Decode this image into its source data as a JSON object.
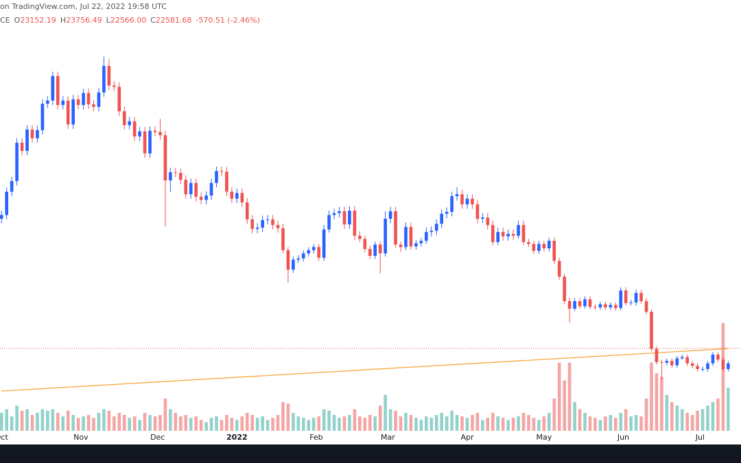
{
  "chart_data": {
    "type": "candlestick",
    "title": "on TradingView.com, Jul 22, 2022 19:58 UTC",
    "symbol": "CE",
    "legend": {
      "labels": [
        "O",
        "H",
        "L",
        "C"
      ],
      "values": [
        23152.19,
        23756.49,
        22566,
        22581.68
      ],
      "value_labels": [
        "23152.19",
        "23756.49",
        "22566.00",
        "22581.68"
      ],
      "change": "-570.51 (-2.46%)"
    },
    "open": [
      43200,
      43800,
      47500,
      49200,
      55300,
      54000,
      57400,
      56000,
      57300,
      61500,
      62000,
      65900,
      61300,
      62000,
      58200,
      62200,
      61300,
      63200,
      61400,
      61000,
      63300,
      67500,
      64400,
      64200,
      60300,
      58100,
      58700,
      56300,
      57100,
      53600,
      57200,
      57000,
      56500,
      49300,
      50600,
      50500,
      49400,
      47100,
      48900,
      46700,
      46200,
      46900,
      48900,
      50800,
      50700,
      47500,
      46400,
      47300,
      45800,
      43100,
      41600,
      41800,
      43000,
      43100,
      42200,
      41700,
      38200,
      35100,
      36700,
      36900,
      37700,
      38200,
      38700,
      37000,
      41500,
      43800,
      44100,
      44400,
      42300,
      44500,
      40500,
      40000,
      38400,
      37300,
      39100,
      37700,
      43200,
      44400,
      39100,
      38700,
      41900,
      38800,
      39300,
      39700,
      41100,
      41300,
      42400,
      44000,
      44300,
      46800,
      47100,
      45500,
      46400,
      45500,
      43200,
      43400,
      42200,
      39500,
      41100,
      40400,
      40800,
      40500,
      42200,
      39500,
      39200,
      38100,
      39200,
      38500,
      39700,
      36500,
      34000,
      30100,
      28900,
      30100,
      29300,
      30400,
      29200,
      29100,
      29600,
      29100,
      29500,
      29000,
      31800,
      29800,
      29900,
      31400,
      30100,
      28400,
      22500,
      20400,
      20300,
      20600,
      19900,
      21000,
      21200,
      20200,
      19800,
      19300,
      19300,
      20200,
      21600,
      20800,
      19300
    ],
    "high": [
      44500,
      48200,
      49900,
      56000,
      56000,
      58100,
      58100,
      58000,
      62200,
      62700,
      66600,
      66600,
      62700,
      62700,
      62900,
      62900,
      63900,
      63900,
      62100,
      64000,
      69000,
      68600,
      65100,
      64900,
      61000,
      59400,
      59400,
      57800,
      57800,
      57900,
      57900,
      59100,
      57200,
      51300,
      51300,
      51200,
      50100,
      49600,
      49600,
      47400,
      47600,
      49600,
      51500,
      51500,
      51400,
      48200,
      48000,
      48000,
      46500,
      43800,
      42500,
      43700,
      43800,
      43800,
      42900,
      42400,
      38700,
      37200,
      37400,
      38200,
      38700,
      39200,
      39200,
      42200,
      44500,
      44800,
      45100,
      45100,
      45200,
      45200,
      41200,
      40500,
      38900,
      39600,
      39600,
      44400,
      45100,
      45100,
      39600,
      42600,
      42600,
      39800,
      40200,
      41800,
      42000,
      43100,
      44700,
      45000,
      47500,
      48200,
      47800,
      47100,
      47100,
      46200,
      44100,
      44100,
      42900,
      41800,
      41800,
      41500,
      41500,
      42900,
      42900,
      40000,
      39700,
      39700,
      39700,
      40200,
      40200,
      37000,
      34500,
      30600,
      30600,
      30600,
      30900,
      30900,
      29600,
      30000,
      30000,
      29900,
      29900,
      32300,
      32300,
      30300,
      31900,
      31900,
      30600,
      28800,
      22900,
      20800,
      21000,
      21000,
      21400,
      21600,
      21600,
      20600,
      20200,
      19700,
      20600,
      22000,
      22000,
      21200,
      20600
    ],
    "low": [
      42500,
      43100,
      46800,
      48500,
      53300,
      53300,
      55300,
      55300,
      56600,
      60800,
      61300,
      60600,
      60600,
      57500,
      57500,
      60600,
      60600,
      60700,
      60300,
      60300,
      62600,
      63700,
      63500,
      59600,
      57400,
      57400,
      55600,
      55600,
      52900,
      52900,
      56300,
      55800,
      42000,
      47500,
      49800,
      48700,
      46400,
      46400,
      46000,
      45500,
      45500,
      46200,
      48200,
      50000,
      46800,
      45700,
      45700,
      45100,
      42400,
      40900,
      40900,
      41100,
      42300,
      41500,
      41000,
      37700,
      33000,
      34600,
      36200,
      36400,
      37200,
      37700,
      36500,
      36500,
      41000,
      43100,
      43400,
      41600,
      41600,
      39800,
      39500,
      37900,
      36800,
      36800,
      34500,
      37200,
      42500,
      38600,
      37900,
      38200,
      38300,
      38300,
      38800,
      39200,
      40400,
      40600,
      41700,
      43300,
      43600,
      46100,
      44800,
      44800,
      44800,
      42500,
      42500,
      41500,
      39000,
      39000,
      39700,
      39700,
      39800,
      40000,
      39000,
      38700,
      37600,
      37600,
      38000,
      38000,
      36000,
      33500,
      29600,
      26700,
      28500,
      28900,
      28900,
      28800,
      28700,
      28700,
      28700,
      28700,
      28600,
      28600,
      29400,
      29400,
      29400,
      29700,
      28000,
      22100,
      20000,
      17600,
      19900,
      19500,
      19500,
      20800,
      19800,
      19400,
      18900,
      18900,
      18900,
      19800,
      20400,
      18900,
      18900
    ],
    "close": [
      43800,
      47500,
      49200,
      55300,
      54000,
      57400,
      56000,
      57300,
      61500,
      62000,
      65900,
      61300,
      62000,
      58200,
      62200,
      61300,
      63200,
      61400,
      61000,
      63300,
      67500,
      64400,
      64200,
      60300,
      58100,
      58700,
      56300,
      57100,
      53600,
      57200,
      57000,
      56500,
      49300,
      50600,
      50500,
      49400,
      47100,
      48900,
      46700,
      46200,
      46900,
      48900,
      50800,
      50700,
      47500,
      46400,
      47300,
      45800,
      43100,
      41600,
      41800,
      43000,
      43100,
      42200,
      41700,
      38200,
      35100,
      36700,
      36900,
      37700,
      38200,
      38700,
      37000,
      41500,
      43800,
      44100,
      44400,
      42300,
      44500,
      40500,
      40000,
      38400,
      37300,
      39100,
      37700,
      43200,
      44400,
      39100,
      38700,
      41900,
      38800,
      39300,
      39700,
      41100,
      41300,
      42400,
      44000,
      44300,
      46800,
      47100,
      45500,
      46400,
      45500,
      43200,
      43400,
      42200,
      39500,
      41100,
      40400,
      40800,
      40500,
      42200,
      39500,
      39200,
      38100,
      39200,
      38500,
      39700,
      36500,
      34000,
      30100,
      28900,
      30100,
      29300,
      30400,
      29200,
      29100,
      29600,
      29100,
      29500,
      29000,
      31800,
      29800,
      29900,
      31400,
      30100,
      28400,
      22500,
      20400,
      20300,
      20600,
      19900,
      21000,
      21200,
      20200,
      19800,
      19300,
      19300,
      20200,
      21600,
      20800,
      19300,
      20200
    ],
    "volume": [
      25,
      30,
      20,
      35,
      28,
      30,
      22,
      25,
      30,
      28,
      30,
      25,
      20,
      28,
      22,
      18,
      20,
      22,
      18,
      25,
      30,
      28,
      20,
      25,
      22,
      18,
      20,
      15,
      25,
      22,
      20,
      22,
      45,
      30,
      25,
      20,
      22,
      18,
      20,
      15,
      12,
      18,
      20,
      15,
      22,
      18,
      15,
      20,
      25,
      22,
      18,
      20,
      15,
      18,
      22,
      40,
      38,
      25,
      20,
      18,
      15,
      18,
      20,
      30,
      28,
      22,
      18,
      20,
      22,
      30,
      20,
      18,
      22,
      20,
      35,
      50,
      30,
      28,
      20,
      25,
      22,
      18,
      15,
      20,
      18,
      22,
      25,
      20,
      28,
      22,
      20,
      18,
      22,
      25,
      15,
      18,
      25,
      20,
      18,
      15,
      18,
      20,
      25,
      22,
      18,
      15,
      20,
      25,
      45,
      95,
      70,
      95,
      40,
      30,
      25,
      20,
      18,
      15,
      20,
      22,
      18,
      25,
      30,
      20,
      22,
      20,
      45,
      95,
      80,
      75,
      50,
      40,
      35,
      30,
      25,
      22,
      28,
      30,
      35,
      40,
      45,
      150,
      60
    ],
    "xlim": [
      -0.3,
      144.5
    ],
    "ylim": [
      7300,
      78000
    ],
    "volume_ylim": [
      0,
      600
    ],
    "xticks": [
      {
        "value": 0,
        "label": "Oct"
      },
      {
        "value": 15.5,
        "label": "Nov"
      },
      {
        "value": 30.5,
        "label": "Dec"
      },
      {
        "value": 46,
        "label": "2022"
      },
      {
        "value": 61.5,
        "label": "Feb"
      },
      {
        "value": 75.5,
        "label": "Mar"
      },
      {
        "value": 91,
        "label": "Apr"
      },
      {
        "value": 106,
        "label": "May"
      },
      {
        "value": 121.5,
        "label": "Jun"
      },
      {
        "value": 136.5,
        "label": "Jul"
      }
    ],
    "ma": {
      "x": [
        0,
        12,
        24,
        36,
        48,
        60,
        72,
        84,
        96,
        108,
        120,
        132,
        142
      ],
      "values": [
        15800,
        16370,
        16940,
        17510,
        18080,
        18650,
        19220,
        19790,
        20360,
        20930,
        21500,
        22070,
        22550
      ]
    },
    "up_color": "#2962ff",
    "down_color": "#ef5350",
    "volume_up_color": "#93d2cc",
    "volume_down_color": "#f5a6a4",
    "ma_color": "#f7a53a"
  }
}
